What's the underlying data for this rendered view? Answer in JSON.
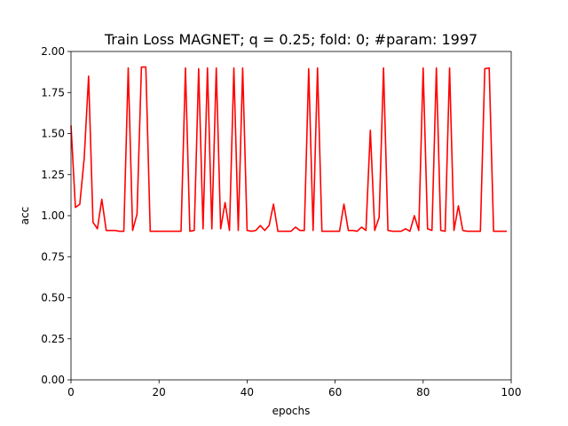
{
  "chart_data": {
    "type": "line",
    "title": "Train Loss MAGNET; q = 0.25; fold: 0; #param: 1997",
    "xlabel": "epochs",
    "ylabel": "acc",
    "xlim": [
      0,
      100
    ],
    "ylim": [
      0,
      2.0
    ],
    "xticks": [
      0,
      20,
      40,
      60,
      80,
      100
    ],
    "yticks": [
      0.0,
      0.25,
      0.5,
      0.75,
      1.0,
      1.25,
      1.5,
      1.75,
      2.0
    ],
    "xtick_labels": [
      "0",
      "20",
      "40",
      "60",
      "80",
      "100"
    ],
    "ytick_labels": [
      "0.00",
      "0.25",
      "0.50",
      "0.75",
      "1.00",
      "1.25",
      "1.50",
      "1.75",
      "2.00"
    ],
    "grid": false,
    "series": [
      {
        "color": "#ff0000",
        "x": [
          0,
          1,
          2,
          3,
          4,
          5,
          6,
          7,
          8,
          9,
          10,
          11,
          12,
          13,
          14,
          15,
          16,
          17,
          18,
          19,
          20,
          21,
          22,
          23,
          24,
          25,
          26,
          27,
          28,
          29,
          30,
          31,
          32,
          33,
          34,
          35,
          36,
          37,
          38,
          39,
          40,
          41,
          42,
          43,
          44,
          45,
          46,
          47,
          48,
          49,
          50,
          51,
          52,
          53,
          54,
          55,
          56,
          57,
          58,
          59,
          60,
          61,
          62,
          63,
          64,
          65,
          66,
          67,
          68,
          69,
          70,
          71,
          72,
          73,
          74,
          75,
          76,
          77,
          78,
          79,
          80,
          81,
          82,
          83,
          84,
          85,
          86,
          87,
          88,
          89,
          90,
          91,
          92,
          93,
          94,
          95,
          96,
          97,
          98,
          99
        ],
        "y": [
          1.55,
          1.05,
          1.07,
          1.35,
          1.85,
          0.96,
          0.92,
          1.1,
          0.91,
          0.91,
          0.91,
          0.905,
          0.905,
          1.9,
          0.91,
          1.01,
          1.905,
          1.905,
          0.905,
          0.905,
          0.905,
          0.905,
          0.905,
          0.905,
          0.905,
          0.905,
          1.9,
          0.905,
          0.91,
          1.895,
          0.92,
          1.9,
          0.92,
          1.9,
          0.92,
          1.08,
          0.91,
          1.9,
          0.91,
          1.9,
          0.91,
          0.905,
          0.91,
          0.94,
          0.91,
          0.94,
          1.07,
          0.905,
          0.905,
          0.905,
          0.905,
          0.93,
          0.91,
          0.91,
          1.895,
          0.91,
          1.9,
          0.905,
          0.905,
          0.905,
          0.905,
          0.905,
          1.07,
          0.91,
          0.91,
          0.905,
          0.93,
          0.91,
          1.52,
          0.91,
          0.99,
          1.9,
          0.91,
          0.905,
          0.905,
          0.905,
          0.92,
          0.905,
          1.0,
          0.91,
          1.9,
          0.92,
          0.91,
          1.9,
          0.91,
          0.905,
          1.9,
          0.91,
          1.06,
          0.91,
          0.905,
          0.905,
          0.905,
          0.905,
          1.895,
          1.9,
          0.905,
          0.905,
          0.905,
          0.905
        ]
      }
    ]
  }
}
